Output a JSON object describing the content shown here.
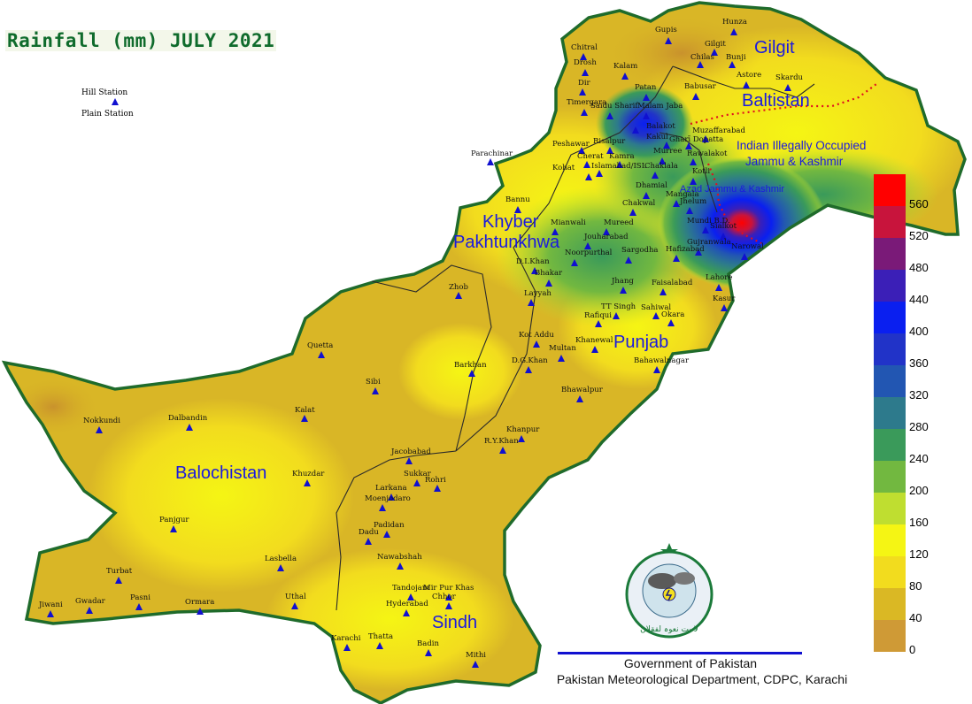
{
  "title": "Rainfall (mm) JULY 2021",
  "legend": {
    "hill": "Hill Station",
    "plain": "Plain Station"
  },
  "regions": {
    "gilgit": "Gilgit",
    "baltistan": "Baltistan",
    "iiojk_1": "Indian Illegally Occupied",
    "iiojk_2": "Jammu & Kashmir",
    "ajk": "Azad Jammu & Kashmir",
    "kp_1": "Khyber",
    "kp_2": "Pakhtunkhwa",
    "punjab": "Punjab",
    "balochistan": "Balochistan",
    "sindh": "Sindh"
  },
  "cities": [
    "Hunza",
    "Gupis",
    "Chitral",
    "Gilgit",
    "Drosh",
    "Chilas",
    "Bunji",
    "Kalam",
    "Astore",
    "Skardu",
    "Dir",
    "Patan",
    "Babusar",
    "Timergara",
    "Saidu Sharif",
    "Malam Jaba",
    "Balakot",
    "Muzaffarabad",
    "Kakul",
    "Gharī Dopatta",
    "Peshawar",
    "Risalpur",
    "Murree",
    "Rawalakot",
    "Parachinar",
    "Cherat",
    "Kamra",
    "Kohat",
    "Islamabad/ISL",
    "Chaklala",
    "Kotli",
    "Bannu",
    "Dhamial",
    "Mangala",
    "Jhelum",
    "Chakwal",
    "Mianwali",
    "Mureed",
    "Mundi B.D.",
    "Sialkot",
    "Jouharabad",
    "Gujranwala",
    "Narowal",
    "Noorpurthal",
    "Sargodha",
    "Hafizabad",
    "D.I.Khan",
    "Bhakar",
    "Jhang",
    "Faisalabad",
    "Lahore",
    "Zhob",
    "Layyah",
    "Kasur",
    "TT Singh",
    "Sahiwal",
    "Okara",
    "Rafiqui",
    "Kot Addu",
    "Khanewal",
    "Multan",
    "Quetta",
    "Barkhan",
    "D.G.Khan",
    "Bahawalnagar",
    "Sibi",
    "Bhawalpur",
    "Nokkundi",
    "Dalbandin",
    "Kalat",
    "Khanpur",
    "R.Y.Khan",
    "Jacobabad",
    "Khuzdar",
    "Sukkar",
    "Rohri",
    "Larkana",
    "Moenjodaro",
    "Panjgur",
    "Padidan",
    "Dadu",
    "Nawabshah",
    "Lasbella",
    "Turbat",
    "Tandojam",
    "Mir Pur Khas",
    "Chhor",
    "Uthal",
    "Hyderabad",
    "Pasni",
    "Jiwani",
    "Gwadar",
    "Ormara",
    "Karachi",
    "Thatta",
    "Badin",
    "Mithi"
  ],
  "colorscale": {
    "labels": [
      "560",
      "520",
      "480",
      "440",
      "400",
      "360",
      "320",
      "280",
      "240",
      "200",
      "160",
      "120",
      "80",
      "40",
      "0"
    ],
    "colors": [
      "#ff0000",
      "#c8143c",
      "#7a1a78",
      "#3b1fb7",
      "#0a1ff0",
      "#2133c8",
      "#2256b2",
      "#2d7a8c",
      "#3a9a5a",
      "#72b840",
      "#bfde30",
      "#f5f514",
      "#f2dc1e",
      "#dab824",
      "#cf9a36"
    ]
  },
  "footer": {
    "line1": "Government of Pakistan",
    "line2": "Pakistan Meteorological Department, CDPC, Karachi"
  },
  "emblem_text": "لا یت نعوہ لفقلان"
}
